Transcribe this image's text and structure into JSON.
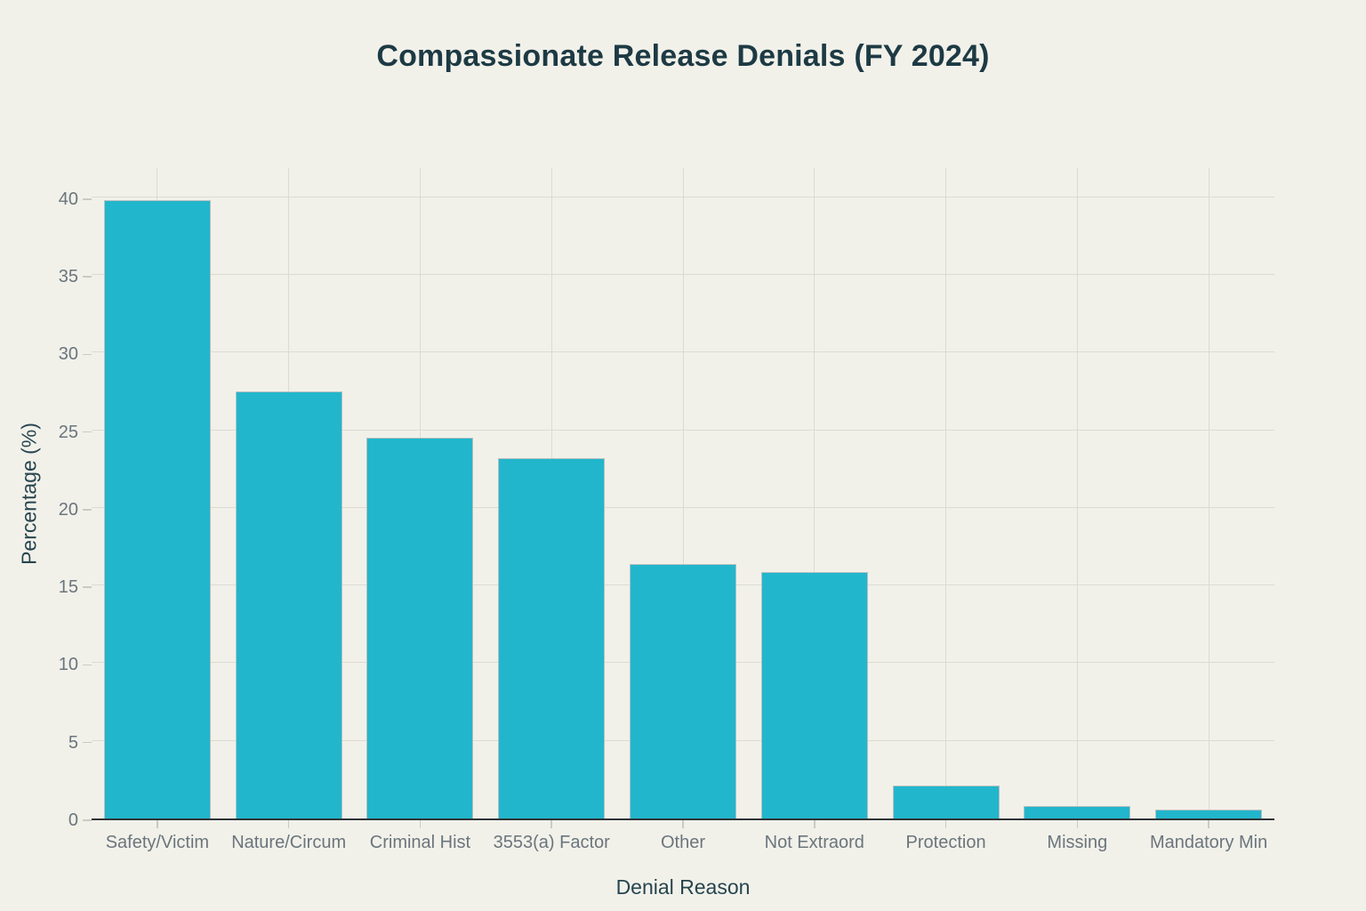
{
  "chart_data": {
    "type": "bar",
    "title": "Compassionate Release Denials (FY 2024)",
    "xlabel": "Denial Reason",
    "ylabel": "Percentage (%)",
    "categories": [
      "Safety/Victim",
      "Nature/Circum",
      "Criminal Hist",
      "3553(a) Factor",
      "Other",
      "Not Extraord",
      "Protection",
      "Missing",
      "Mandatory Min"
    ],
    "values": [
      39.8,
      27.5,
      24.5,
      23.2,
      16.4,
      15.9,
      2.1,
      0.8,
      0.6
    ],
    "ylim": [
      0,
      42
    ],
    "yticks": [
      0,
      5,
      10,
      15,
      20,
      25,
      30,
      35,
      40
    ],
    "grid": true,
    "legend": "none",
    "colors": {
      "background": "#f1f1ea",
      "bar_fill": "#22b6cc",
      "bar_edge": "#b6c0bf",
      "grid": "#dbdbd3",
      "axis_line": "#2f3437",
      "tick_label": "#6b757c",
      "tick_mark": "#c9cbc3",
      "heading": "#1d3a44",
      "axis_title": "#27454e"
    }
  }
}
